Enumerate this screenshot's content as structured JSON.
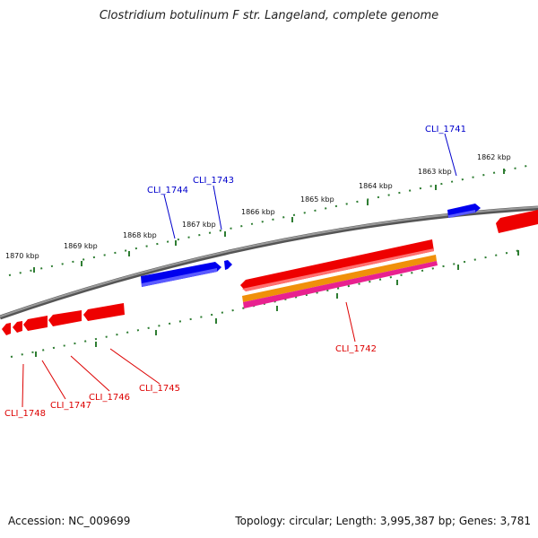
{
  "title": "Clostridium botulinum F str. Langeland, complete genome",
  "footer": {
    "accession": "Accession: NC_009699",
    "topology": "Topology: circular; Length: 3,995,387 bp; Genes: 3,781"
  },
  "colors": {
    "backbone": "#808080",
    "tick": "#2e7d32",
    "forward_gene": "#0000ee",
    "reverse_gene": "#ee0000",
    "orange_feature": "#f0900a",
    "pink_feature": "#e8218f"
  },
  "ruler_labels": [
    "1870 kbp",
    "1869 kbp",
    "1868 kbp",
    "1867 kbp",
    "1866 kbp",
    "1865 kbp",
    "1864 kbp",
    "1863 kbp",
    "1862 kbp"
  ],
  "forward_genes": [
    "CLI_1744",
    "CLI_1743",
    "CLI_1741"
  ],
  "reverse_genes": [
    "CLI_1748",
    "CLI_1747",
    "CLI_1746",
    "CLI_1745",
    "CLI_1742"
  ]
}
